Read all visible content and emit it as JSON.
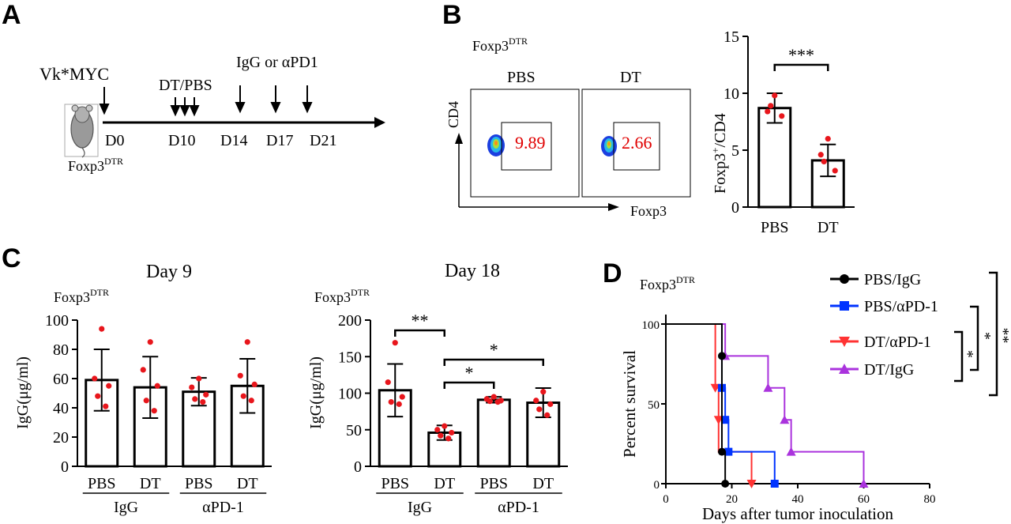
{
  "panels": {
    "A": "A",
    "B": "B",
    "C": "C",
    "D": "D"
  },
  "timeline": {
    "model": "Vk*MYC",
    "mouse_label_main": "Foxp3",
    "mouse_label_sup": "DTR",
    "dt_label": "DT/PBS",
    "treat_label": "IgG or αPD1",
    "days": [
      "D0",
      "D10",
      "D14",
      "D17",
      "D21"
    ]
  },
  "flow": {
    "title_main": "Foxp3",
    "title_sup": "DTR",
    "groups": [
      {
        "name": "PBS",
        "percent": "9.89"
      },
      {
        "name": "DT",
        "percent": "2.66"
      }
    ],
    "y_axis": "CD4",
    "x_axis": "Foxp3",
    "percent_color": "#e00000"
  },
  "chart_data": [
    {
      "id": "B-bar",
      "type": "bar",
      "categories": [
        "PBS",
        "DT"
      ],
      "values": [
        8.7,
        4.1
      ],
      "errors": [
        1.3,
        1.4
      ],
      "points": [
        [
          9.8,
          8.4,
          8.0,
          8.9
        ],
        [
          6.0,
          4.6,
          3.2,
          4.0
        ]
      ],
      "ylabel_main": "Foxp3",
      "ylabel_sup": "+",
      "ylabel_rest": "/CD4",
      "ylim": [
        0,
        15
      ],
      "yticks": [
        "0",
        "5",
        "10",
        "15"
      ],
      "significance": [
        {
          "from": 0,
          "to": 1,
          "label": "***"
        }
      ]
    },
    {
      "id": "C-day9",
      "type": "bar",
      "title": "Day 9",
      "subtitle_main": "Foxp3",
      "subtitle_sup": "DTR",
      "categories": [
        "PBS",
        "DT",
        "PBS",
        "DT"
      ],
      "groups": [
        "IgG",
        "αPD-1"
      ],
      "values": [
        59,
        54,
        51,
        55
      ],
      "errors": [
        21,
        21,
        9.5,
        18.5
      ],
      "points": [
        [
          94,
          60,
          55,
          48,
          41
        ],
        [
          85,
          66,
          55,
          45,
          38
        ],
        [
          60,
          54,
          49,
          46,
          44
        ],
        [
          85,
          62,
          56,
          48,
          45
        ]
      ],
      "ylabel": "IgG(μg/ml)",
      "ylim": [
        0,
        100
      ],
      "yticks": [
        "0",
        "20",
        "40",
        "60",
        "80",
        "100"
      ],
      "significance": []
    },
    {
      "id": "C-day18",
      "type": "bar",
      "title": "Day 18",
      "subtitle_main": "Foxp3",
      "subtitle_sup": "DTR",
      "categories": [
        "PBS",
        "DT",
        "PBS",
        "DT"
      ],
      "groups": [
        "IgG",
        "αPD-1"
      ],
      "values": [
        104,
        46,
        91,
        87
      ],
      "errors": [
        36,
        10,
        4,
        20
      ],
      "points": [
        [
          169,
          115,
          95,
          88,
          85
        ],
        [
          55,
          50,
          46,
          42,
          38
        ],
        [
          95,
          92,
          90,
          89,
          88
        ],
        [
          102,
          90,
          85,
          78,
          70
        ]
      ],
      "ylabel": "IgG(μg/ml)",
      "ylim": [
        0,
        200
      ],
      "yticks": [
        "0",
        "50",
        "100",
        "150",
        "200"
      ],
      "significance": [
        {
          "from": 0,
          "to": 1,
          "label": "**"
        },
        {
          "from": 1,
          "to": 2,
          "label": "*"
        },
        {
          "from": 1,
          "to": 3,
          "label": "*"
        }
      ]
    },
    {
      "id": "D-survival",
      "type": "line",
      "subtitle_main": "Foxp3",
      "subtitle_sup": "DTR",
      "xlabel": "Days after tumor inoculation",
      "ylabel": "Percent survival",
      "xlim": [
        0,
        80
      ],
      "ylim": [
        0,
        100
      ],
      "xticks": [
        "0",
        "20",
        "40",
        "60",
        "80"
      ],
      "yticks": [
        "0",
        "50",
        "100"
      ],
      "series": [
        {
          "name": "PBS/IgG",
          "color": "#000000",
          "marker": "circle",
          "steps": [
            [
              0,
              100
            ],
            [
              17,
              100
            ],
            [
              17,
              80
            ],
            [
              17,
              60
            ],
            [
              17,
              40
            ],
            [
              17,
              20
            ],
            [
              18,
              20
            ],
            [
              18,
              0
            ]
          ],
          "marks": [
            [
              17,
              80
            ],
            [
              17,
              20
            ],
            [
              18,
              0
            ]
          ]
        },
        {
          "name": "PBS/αPD-1",
          "color": "#0033ff",
          "marker": "square",
          "steps": [
            [
              0,
              100
            ],
            [
              17,
              100
            ],
            [
              17,
              60
            ],
            [
              18,
              60
            ],
            [
              18,
              40
            ],
            [
              19,
              40
            ],
            [
              19,
              20
            ],
            [
              33,
              20
            ],
            [
              33,
              0
            ]
          ],
          "marks": [
            [
              17,
              60
            ],
            [
              18,
              40
            ],
            [
              19,
              20
            ],
            [
              33,
              0
            ]
          ]
        },
        {
          "name": "DT/αPD-1",
          "color": "#ff3333",
          "marker": "triangle-down",
          "steps": [
            [
              0,
              100
            ],
            [
              15,
              100
            ],
            [
              15,
              60
            ],
            [
              16,
              60
            ],
            [
              16,
              40
            ],
            [
              16,
              20
            ],
            [
              26,
              20
            ],
            [
              26,
              0
            ]
          ],
          "marks": [
            [
              15,
              60
            ],
            [
              16,
              40
            ],
            [
              26,
              0
            ]
          ]
        },
        {
          "name": "DT/IgG",
          "color": "#aa33dd",
          "marker": "triangle-up",
          "steps": [
            [
              0,
              100
            ],
            [
              18,
              100
            ],
            [
              18,
              80
            ],
            [
              31,
              80
            ],
            [
              31,
              60
            ],
            [
              36,
              60
            ],
            [
              36,
              40
            ],
            [
              38,
              40
            ],
            [
              38,
              20
            ],
            [
              60,
              20
            ],
            [
              60,
              0
            ]
          ],
          "marks": [
            [
              18,
              80
            ],
            [
              31,
              60
            ],
            [
              36,
              40
            ],
            [
              38,
              20
            ],
            [
              60,
              0
            ]
          ]
        }
      ],
      "significance": [
        "*",
        "*",
        "**"
      ]
    }
  ]
}
